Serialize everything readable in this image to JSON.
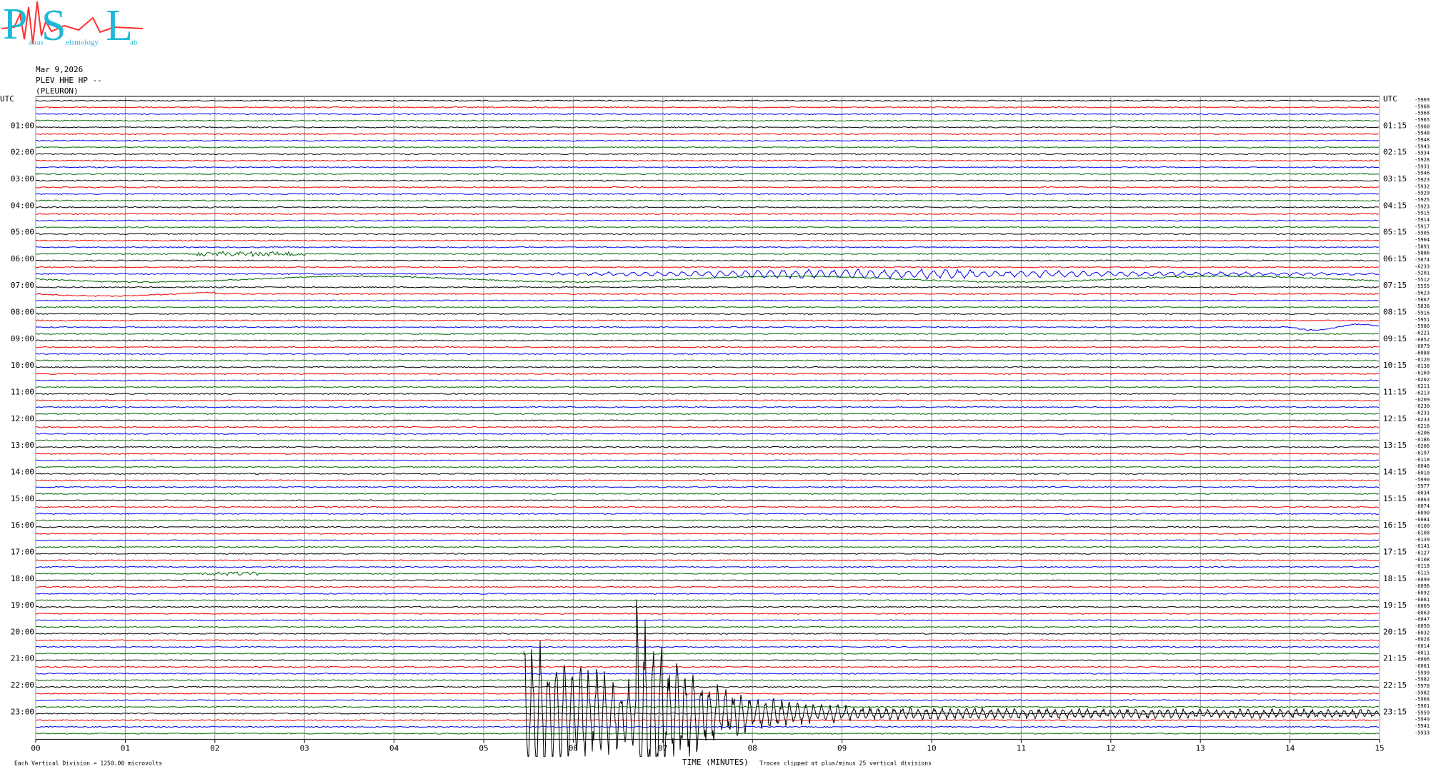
{
  "logo": {
    "letters": [
      "P",
      "S",
      "L"
    ],
    "words": [
      "atras",
      "eismology",
      "ab"
    ]
  },
  "header": {
    "date": "Mar 9,2026",
    "station": "PLEV HHE HP --",
    "site": "(PLEURON)"
  },
  "left_labels": [
    "UTC",
    "01:00",
    "02:00",
    "03:00",
    "04:00",
    "05:00",
    "06:00",
    "07:00",
    "08:00",
    "09:00",
    "10:00",
    "11:00",
    "12:00",
    "13:00",
    "14:00",
    "15:00",
    "16:00",
    "17:00",
    "18:00",
    "19:00",
    "20:00",
    "21:00",
    "22:00",
    "23:00"
  ],
  "right_labels": [
    "UTC",
    "01:15",
    "02:15",
    "03:15",
    "04:15",
    "05:15",
    "06:15",
    "07:15",
    "08:15",
    "09:15",
    "10:15",
    "11:15",
    "12:15",
    "13:15",
    "14:15",
    "15:15",
    "16:15",
    "17:15",
    "18:15",
    "19:15",
    "20:15",
    "21:15",
    "22:15",
    "23:15"
  ],
  "trace_offsets": [
    -5969,
    -5968,
    -5968,
    -5965,
    -5960,
    -5948,
    -5948,
    -5943,
    -5934,
    -5928,
    -5931,
    -5946,
    -5923,
    -5932,
    -5929,
    -5925,
    -5923,
    -5915,
    -5914,
    -5917,
    -5905,
    -5904,
    -5891,
    -5886,
    -5874,
    -6233,
    -5201,
    -5512,
    -5555,
    -5623,
    -5667,
    -5836,
    -5916,
    -5951,
    -5980,
    -6221,
    -6052,
    -6079,
    -6088,
    -6120,
    -6138,
    -6169,
    -6202,
    -6211,
    -6213,
    -6209,
    -6230,
    -6231,
    -6233,
    -6216,
    -6206,
    -6186,
    -6206,
    -6197,
    -6118,
    -6046,
    -6010,
    -5990,
    -5977,
    -6034,
    -6063,
    -6074,
    -6090,
    -6084,
    -6100,
    -6108,
    -6139,
    -6141,
    -6127,
    -6108,
    -6118,
    -6115,
    -6099,
    -6096,
    -6092,
    -6081,
    -6069,
    -6063,
    -6047,
    -6050,
    -6032,
    -6028,
    -6014,
    -6011,
    -6006,
    -6001,
    -5999,
    -5982,
    -5978,
    -5982,
    -5968,
    -5961,
    -5959,
    -5949,
    -5941,
    -5933
  ],
  "x_ticks": [
    "00",
    "01",
    "02",
    "03",
    "04",
    "05",
    "06",
    "07",
    "08",
    "09",
    "10",
    "11",
    "12",
    "13",
    "14",
    "15"
  ],
  "footer": {
    "scale": "Each Vertical Division = 1250.00 microvolts",
    "axis_title": "TIME (MINUTES)",
    "clip": "Traces clipped at plus/minus 25 vertical divisions"
  }
}
